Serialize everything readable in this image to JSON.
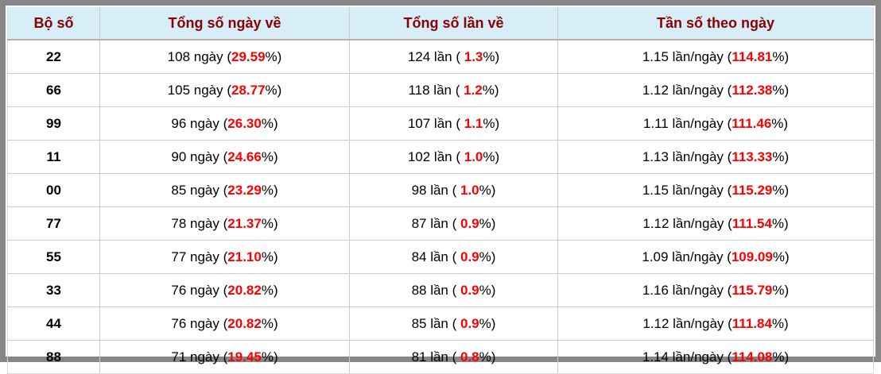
{
  "table": {
    "headers": [
      "Bộ số",
      "Tổng số ngày về",
      "Tổng số lần về",
      "Tần số theo ngày"
    ],
    "units": {
      "days": "ngày",
      "times": "lần",
      "freq": "lần/ngày"
    },
    "rows": [
      {
        "pair": "22",
        "days": "108",
        "days_pct": "29.59",
        "times": "124",
        "times_pct": "1.3",
        "freq": "1.15",
        "freq_pct": "114.81"
      },
      {
        "pair": "66",
        "days": "105",
        "days_pct": "28.77",
        "times": "118",
        "times_pct": "1.2",
        "freq": "1.12",
        "freq_pct": "112.38"
      },
      {
        "pair": "99",
        "days": "96",
        "days_pct": "26.30",
        "times": "107",
        "times_pct": "1.1",
        "freq": "1.11",
        "freq_pct": "111.46"
      },
      {
        "pair": "11",
        "days": "90",
        "days_pct": "24.66",
        "times": "102",
        "times_pct": "1.0",
        "freq": "1.13",
        "freq_pct": "113.33"
      },
      {
        "pair": "00",
        "days": "85",
        "days_pct": "23.29",
        "times": "98",
        "times_pct": "1.0",
        "freq": "1.15",
        "freq_pct": "115.29"
      },
      {
        "pair": "77",
        "days": "78",
        "days_pct": "21.37",
        "times": "87",
        "times_pct": "0.9",
        "freq": "1.12",
        "freq_pct": "111.54"
      },
      {
        "pair": "55",
        "days": "77",
        "days_pct": "21.10",
        "times": "84",
        "times_pct": "0.9",
        "freq": "1.09",
        "freq_pct": "109.09"
      },
      {
        "pair": "33",
        "days": "76",
        "days_pct": "20.82",
        "times": "88",
        "times_pct": "0.9",
        "freq": "1.16",
        "freq_pct": "115.79"
      },
      {
        "pair": "44",
        "days": "76",
        "days_pct": "20.82",
        "times": "85",
        "times_pct": "0.9",
        "freq": "1.12",
        "freq_pct": "111.84"
      },
      {
        "pair": "88",
        "days": "71",
        "days_pct": "19.45",
        "times": "81",
        "times_pct": "0.8",
        "freq": "1.14",
        "freq_pct": "114.08"
      }
    ]
  },
  "colors": {
    "frame_gray": "#878787",
    "header_bg": "#d7edf8",
    "header_text": "#8b0000",
    "percent_red": "#fe0000",
    "grid_line": "#cbcbcb",
    "body_text": "#000000"
  }
}
